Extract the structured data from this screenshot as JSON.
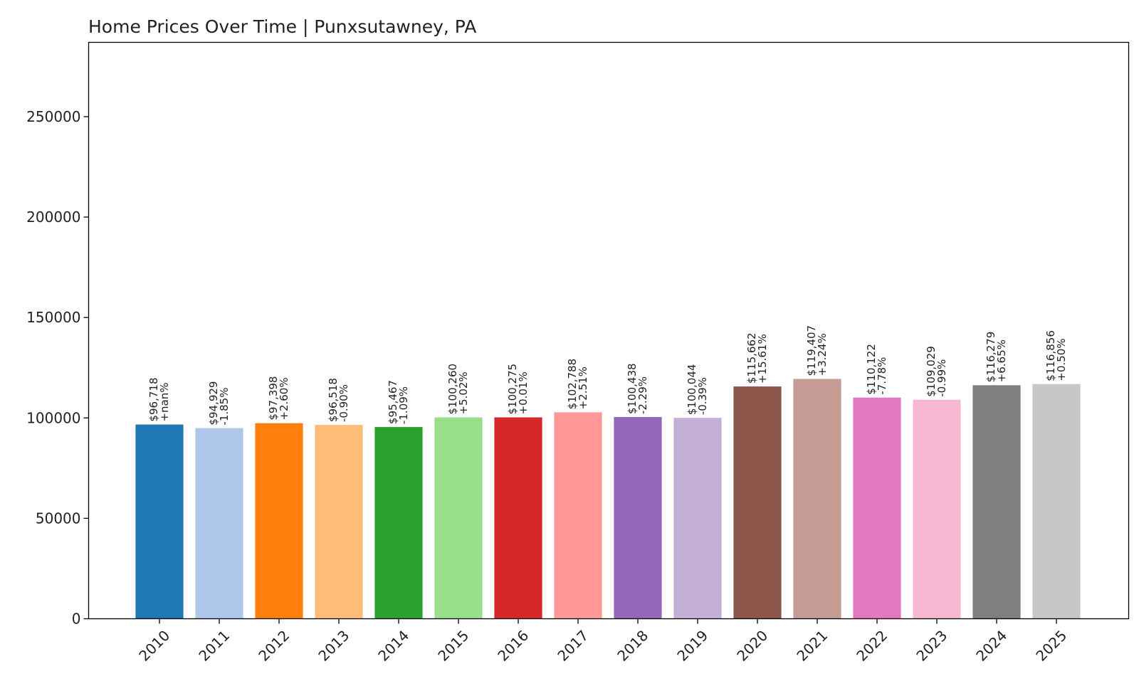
{
  "chart_data": {
    "type": "bar",
    "title": "Home Prices Over Time | Punxsutawney, PA",
    "xlabel": "",
    "ylabel": "",
    "ylim": [
      0,
      287000
    ],
    "yticks": [
      0,
      50000,
      100000,
      150000,
      200000,
      250000
    ],
    "ytick_labels": [
      "0",
      "50000",
      "100000",
      "150000",
      "200000",
      "250000"
    ],
    "grid": false,
    "legend": "none",
    "categories": [
      "2010",
      "2011",
      "2012",
      "2013",
      "2014",
      "2015",
      "2016",
      "2017",
      "2018",
      "2019",
      "2020",
      "2021",
      "2022",
      "2023",
      "2024",
      "2025"
    ],
    "values": [
      96718,
      94929,
      97398,
      96518,
      95467,
      100260,
      100275,
      102788,
      100438,
      100044,
      115662,
      119407,
      110122,
      109029,
      116279,
      116856
    ],
    "price_labels": [
      "$96,718",
      "$94,929",
      "$97,398",
      "$96,518",
      "$95,467",
      "$100,260",
      "$100,275",
      "$102,788",
      "$100,438",
      "$100,044",
      "$115,662",
      "$119,407",
      "$110,122",
      "$109,029",
      "$116,279",
      "$116,856"
    ],
    "change_labels": [
      "+nan%",
      "-1.85%",
      "+2.60%",
      "-0.90%",
      "-1.09%",
      "+5.02%",
      "+0.01%",
      "+2.51%",
      "-2.29%",
      "-0.39%",
      "+15.61%",
      "+3.24%",
      "-7.78%",
      "-0.99%",
      "+6.65%",
      "+0.50%"
    ],
    "colors": [
      "#1f77b4",
      "#aec7e8",
      "#ff7f0e",
      "#ffbb78",
      "#2ca02c",
      "#98df8a",
      "#d62728",
      "#ff9896",
      "#9467bd",
      "#c5b0d5",
      "#8c564b",
      "#c49c94",
      "#e377c2",
      "#f7b6d2",
      "#7f7f7f",
      "#c7c7c7"
    ]
  }
}
